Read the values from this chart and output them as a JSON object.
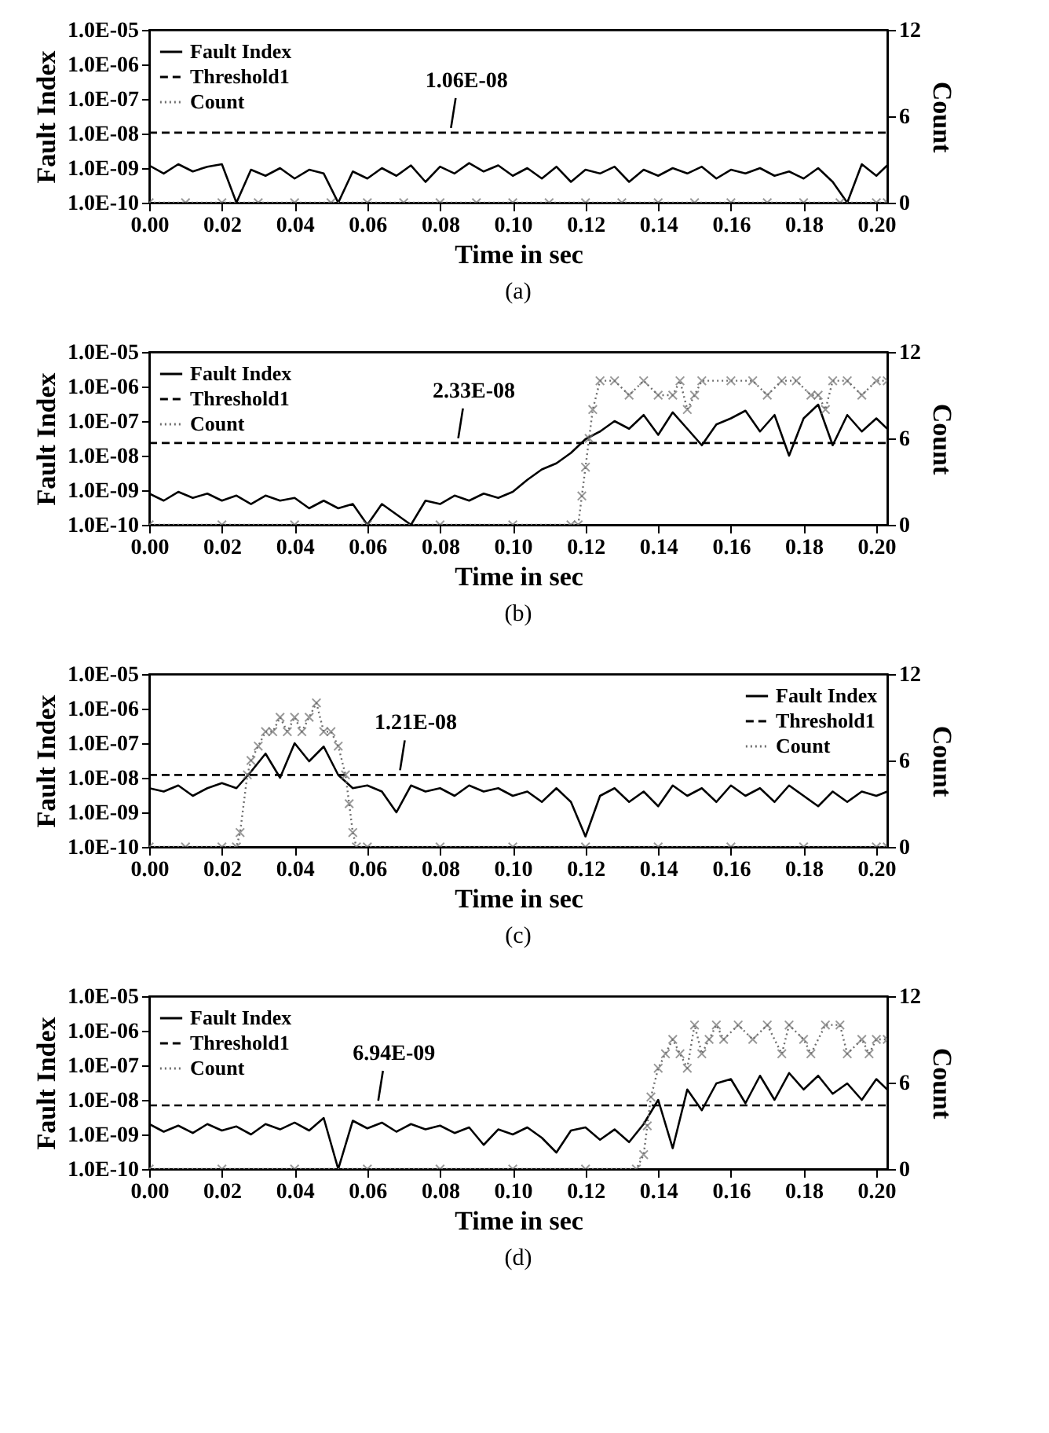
{
  "chart_data": [
    {
      "type": "line",
      "xlabel": "Time in sec",
      "ylabel": "Fault Index",
      "y2label": "Count",
      "log": "y",
      "legend": "top left",
      "xlim": [
        0,
        0.203
      ],
      "xticks": [
        {
          "value": 0,
          "label": "0.00"
        },
        {
          "value": 0.02,
          "label": "0.02"
        },
        {
          "value": 0.04,
          "label": "0.04"
        },
        {
          "value": 0.06,
          "label": "0.06"
        },
        {
          "value": 0.08,
          "label": "0.08"
        },
        {
          "value": 0.1,
          "label": "0.10"
        },
        {
          "value": 0.12,
          "label": "0.12"
        },
        {
          "value": 0.14,
          "label": "0.14"
        },
        {
          "value": 0.16,
          "label": "0.16"
        },
        {
          "value": 0.18,
          "label": "0.18"
        },
        {
          "value": 0.2,
          "label": "0.20"
        }
      ],
      "ylim": [
        1e-10,
        1e-05
      ],
      "yticks": [
        {
          "value": 1e-10,
          "label": "1.0E-10"
        },
        {
          "value": 1e-09,
          "label": "1.0E-09"
        },
        {
          "value": 1e-08,
          "label": "1.0E-08"
        },
        {
          "value": 1e-07,
          "label": "1.0E-07"
        },
        {
          "value": 1e-06,
          "label": "1.0E-06"
        },
        {
          "value": 1e-05,
          "label": "1.0E-05"
        }
      ],
      "y2lim": [
        0,
        12
      ],
      "y2ticks": [
        0,
        6,
        12
      ],
      "x": [
        0,
        0.004,
        0.008,
        0.012,
        0.016,
        0.02,
        0.024,
        0.028,
        0.032,
        0.036,
        0.04,
        0.044,
        0.048,
        0.052,
        0.056,
        0.06,
        0.064,
        0.068,
        0.072,
        0.076,
        0.08,
        0.084,
        0.088,
        0.092,
        0.096,
        0.1,
        0.104,
        0.108,
        0.112,
        0.116,
        0.12,
        0.124,
        0.128,
        0.132,
        0.136,
        0.14,
        0.144,
        0.148,
        0.152,
        0.156,
        0.16,
        0.164,
        0.168,
        0.172,
        0.176,
        0.18,
        0.184,
        0.188,
        0.192,
        0.196,
        0.2,
        0.203
      ],
      "series": [
        {
          "name": "Fault Index",
          "color": "#000000",
          "line_style": "solid",
          "values": [
            1.2e-09,
            7e-10,
            1.3e-09,
            8e-10,
            1.1e-09,
            1.3e-09,
            1e-10,
            9e-10,
            6e-10,
            1e-09,
            5e-10,
            9e-10,
            7e-10,
            1e-10,
            8e-10,
            5e-10,
            1e-09,
            6e-10,
            1.2e-09,
            4e-10,
            1.1e-09,
            7e-10,
            1.4e-09,
            8e-10,
            1.2e-09,
            6e-10,
            1e-09,
            5e-10,
            1.1e-09,
            4e-10,
            9e-10,
            7e-10,
            1.1e-09,
            4e-10,
            9e-10,
            6e-10,
            1e-09,
            7e-10,
            1.1e-09,
            5e-10,
            9e-10,
            7e-10,
            1e-09,
            6e-10,
            8e-10,
            5e-10,
            1e-09,
            4e-10,
            1e-10,
            1.3e-09,
            6e-10,
            1.2e-09
          ]
        },
        {
          "name": "Threshold1",
          "color": "#000000",
          "line_style": "dashed",
          "x": [
            0,
            0.203
          ],
          "values": [
            1.06e-08,
            1.06e-08
          ]
        },
        {
          "name": "Count",
          "color": "#6e6e6e",
          "line_style": "dotted",
          "marker": "cross",
          "axis": "y2",
          "x": [
            0,
            0.01,
            0.02,
            0.03,
            0.04,
            0.05,
            0.06,
            0.07,
            0.08,
            0.09,
            0.1,
            0.11,
            0.12,
            0.13,
            0.14,
            0.15,
            0.16,
            0.17,
            0.18,
            0.19,
            0.2,
            0.203
          ],
          "values": [
            0,
            0,
            0,
            0,
            0,
            0,
            0,
            0,
            0,
            0,
            0,
            0,
            0,
            0,
            0,
            0,
            0,
            0,
            0,
            0,
            0,
            0
          ]
        }
      ],
      "annotations": [
        {
          "text": "1.06E-08",
          "x": 0.083,
          "y": 1.06e-08
        },
        "(a)"
      ]
    },
    {
      "type": "line",
      "xlabel": "Time in sec",
      "ylabel": "Fault Index",
      "y2label": "Count",
      "log": "y",
      "legend": "top left",
      "xlim": [
        0,
        0.203
      ],
      "xticks": [
        {
          "value": 0,
          "label": "0.00"
        },
        {
          "value": 0.02,
          "label": "0.02"
        },
        {
          "value": 0.04,
          "label": "0.04"
        },
        {
          "value": 0.06,
          "label": "0.06"
        },
        {
          "value": 0.08,
          "label": "0.08"
        },
        {
          "value": 0.1,
          "label": "0.10"
        },
        {
          "value": 0.12,
          "label": "0.12"
        },
        {
          "value": 0.14,
          "label": "0.14"
        },
        {
          "value": 0.16,
          "label": "0.16"
        },
        {
          "value": 0.18,
          "label": "0.18"
        },
        {
          "value": 0.2,
          "label": "0.20"
        }
      ],
      "ylim": [
        1e-10,
        1e-05
      ],
      "yticks": [
        {
          "value": 1e-10,
          "label": "1.0E-10"
        },
        {
          "value": 1e-09,
          "label": "1.0E-09"
        },
        {
          "value": 1e-08,
          "label": "1.0E-08"
        },
        {
          "value": 1e-07,
          "label": "1.0E-07"
        },
        {
          "value": 1e-06,
          "label": "1.0E-06"
        },
        {
          "value": 1e-05,
          "label": "1.0E-05"
        }
      ],
      "y2lim": [
        0,
        12
      ],
      "y2ticks": [
        0,
        6,
        12
      ],
      "x": [
        0,
        0.004,
        0.008,
        0.012,
        0.016,
        0.02,
        0.024,
        0.028,
        0.032,
        0.036,
        0.04,
        0.044,
        0.048,
        0.052,
        0.056,
        0.06,
        0.064,
        0.068,
        0.072,
        0.076,
        0.08,
        0.084,
        0.088,
        0.092,
        0.096,
        0.1,
        0.104,
        0.108,
        0.112,
        0.116,
        0.12,
        0.124,
        0.128,
        0.132,
        0.136,
        0.14,
        0.144,
        0.148,
        0.152,
        0.156,
        0.16,
        0.164,
        0.168,
        0.172,
        0.176,
        0.18,
        0.184,
        0.188,
        0.192,
        0.196,
        0.2,
        0.203
      ],
      "series": [
        {
          "name": "Fault Index",
          "color": "#000000",
          "line_style": "solid",
          "values": [
            8e-10,
            5e-10,
            9e-10,
            6e-10,
            8e-10,
            5e-10,
            7e-10,
            4e-10,
            7e-10,
            5e-10,
            6e-10,
            3e-10,
            5e-10,
            3e-10,
            4e-10,
            1e-10,
            4e-10,
            2e-10,
            1e-10,
            5e-10,
            4e-10,
            7e-10,
            5e-10,
            8e-10,
            6e-10,
            9e-10,
            2e-09,
            4e-09,
            6e-09,
            1.2e-08,
            3e-08,
            5e-08,
            1e-07,
            6e-08,
            1.5e-07,
            4e-08,
            1.8e-07,
            6e-08,
            2e-08,
            8e-08,
            1.2e-07,
            2e-07,
            5e-08,
            1.5e-07,
            1e-08,
            1.2e-07,
            3e-07,
            2e-08,
            1.5e-07,
            5e-08,
            1.2e-07,
            6e-08
          ]
        },
        {
          "name": "Threshold1",
          "color": "#000000",
          "line_style": "dashed",
          "x": [
            0,
            0.203
          ],
          "values": [
            2.33e-08,
            2.33e-08
          ]
        },
        {
          "name": "Count",
          "color": "#6e6e6e",
          "line_style": "dotted",
          "marker": "cross",
          "axis": "y2",
          "x": [
            0,
            0.02,
            0.04,
            0.06,
            0.08,
            0.1,
            0.116,
            0.118,
            0.119,
            0.12,
            0.121,
            0.122,
            0.124,
            0.128,
            0.132,
            0.136,
            0.14,
            0.144,
            0.146,
            0.148,
            0.15,
            0.152,
            0.16,
            0.166,
            0.17,
            0.174,
            0.178,
            0.182,
            0.184,
            0.186,
            0.188,
            0.192,
            0.196,
            0.2,
            0.203
          ],
          "values": [
            0,
            0,
            0,
            0,
            0,
            0,
            0,
            0,
            2,
            4,
            6,
            8,
            10,
            10,
            9,
            10,
            9,
            9,
            10,
            8,
            9,
            10,
            10,
            10,
            9,
            10,
            10,
            9,
            9,
            8,
            10,
            10,
            9,
            10,
            10
          ]
        }
      ],
      "annotations": [
        {
          "text": "2.33E-08",
          "x": 0.085,
          "y": 2.33e-08
        },
        "(b)"
      ]
    },
    {
      "type": "line",
      "xlabel": "Time in sec",
      "ylabel": "Fault Index",
      "y2label": "Count",
      "log": "y",
      "legend": "top right",
      "xlim": [
        0,
        0.203
      ],
      "xticks": [
        {
          "value": 0,
          "label": "0.00"
        },
        {
          "value": 0.02,
          "label": "0.02"
        },
        {
          "value": 0.04,
          "label": "0.04"
        },
        {
          "value": 0.06,
          "label": "0.06"
        },
        {
          "value": 0.08,
          "label": "0.08"
        },
        {
          "value": 0.1,
          "label": "0.10"
        },
        {
          "value": 0.12,
          "label": "0.12"
        },
        {
          "value": 0.14,
          "label": "0.14"
        },
        {
          "value": 0.16,
          "label": "0.16"
        },
        {
          "value": 0.18,
          "label": "0.18"
        },
        {
          "value": 0.2,
          "label": "0.20"
        }
      ],
      "ylim": [
        1e-10,
        1e-05
      ],
      "yticks": [
        {
          "value": 1e-10,
          "label": "1.0E-10"
        },
        {
          "value": 1e-09,
          "label": "1.0E-09"
        },
        {
          "value": 1e-08,
          "label": "1.0E-08"
        },
        {
          "value": 1e-07,
          "label": "1.0E-07"
        },
        {
          "value": 1e-06,
          "label": "1.0E-06"
        },
        {
          "value": 1e-05,
          "label": "1.0E-05"
        }
      ],
      "y2lim": [
        0,
        12
      ],
      "y2ticks": [
        0,
        6,
        12
      ],
      "x": [
        0,
        0.004,
        0.008,
        0.012,
        0.016,
        0.02,
        0.024,
        0.028,
        0.032,
        0.036,
        0.04,
        0.044,
        0.048,
        0.052,
        0.056,
        0.06,
        0.064,
        0.068,
        0.072,
        0.076,
        0.08,
        0.084,
        0.088,
        0.092,
        0.096,
        0.1,
        0.104,
        0.108,
        0.112,
        0.116,
        0.12,
        0.124,
        0.128,
        0.132,
        0.136,
        0.14,
        0.144,
        0.148,
        0.152,
        0.156,
        0.16,
        0.164,
        0.168,
        0.172,
        0.176,
        0.18,
        0.184,
        0.188,
        0.192,
        0.196,
        0.2,
        0.203
      ],
      "series": [
        {
          "name": "Fault Index",
          "color": "#000000",
          "line_style": "solid",
          "values": [
            5e-09,
            4e-09,
            6e-09,
            3e-09,
            5e-09,
            7e-09,
            5e-09,
            1.5e-08,
            5e-08,
            1e-08,
            1e-07,
            3e-08,
            8e-08,
            1.2e-08,
            5e-09,
            6e-09,
            4e-09,
            1e-09,
            6e-09,
            4e-09,
            5e-09,
            3e-09,
            6e-09,
            4e-09,
            5e-09,
            3e-09,
            4e-09,
            2e-09,
            5e-09,
            2e-09,
            2e-10,
            3e-09,
            5e-09,
            2e-09,
            4e-09,
            1.5e-09,
            6e-09,
            3e-09,
            5e-09,
            2e-09,
            6e-09,
            3e-09,
            5e-09,
            2e-09,
            6e-09,
            3e-09,
            1.5e-09,
            4e-09,
            2e-09,
            4e-09,
            3e-09,
            4e-09
          ]
        },
        {
          "name": "Threshold1",
          "color": "#000000",
          "line_style": "dashed",
          "x": [
            0,
            0.203
          ],
          "values": [
            1.21e-08,
            1.21e-08
          ]
        },
        {
          "name": "Count",
          "color": "#6e6e6e",
          "line_style": "dotted",
          "marker": "cross",
          "axis": "y2",
          "x": [
            0,
            0.01,
            0.02,
            0.024,
            0.025,
            0.027,
            0.028,
            0.03,
            0.032,
            0.034,
            0.036,
            0.038,
            0.04,
            0.042,
            0.044,
            0.046,
            0.048,
            0.05,
            0.052,
            0.054,
            0.055,
            0.056,
            0.057,
            0.06,
            0.08,
            0.1,
            0.12,
            0.14,
            0.16,
            0.18,
            0.2,
            0.203
          ],
          "values": [
            0,
            0,
            0,
            0,
            1,
            5,
            6,
            7,
            8,
            8,
            9,
            8,
            9,
            8,
            9,
            10,
            8,
            8,
            7,
            5,
            3,
            1,
            0,
            0,
            0,
            0,
            0,
            0,
            0,
            0,
            0,
            0
          ]
        }
      ],
      "annotations": [
        {
          "text": "1.21E-08",
          "x": 0.069,
          "y": 1.21e-08
        },
        "(c)"
      ]
    },
    {
      "type": "line",
      "xlabel": "Time in sec",
      "ylabel": "Fault Index",
      "y2label": "Count",
      "log": "y",
      "legend": "top left",
      "xlim": [
        0,
        0.203
      ],
      "xticks": [
        {
          "value": 0,
          "label": "0.00"
        },
        {
          "value": 0.02,
          "label": "0.02"
        },
        {
          "value": 0.04,
          "label": "0.04"
        },
        {
          "value": 0.06,
          "label": "0.06"
        },
        {
          "value": 0.08,
          "label": "0.08"
        },
        {
          "value": 0.1,
          "label": "0.10"
        },
        {
          "value": 0.12,
          "label": "0.12"
        },
        {
          "value": 0.14,
          "label": "0.14"
        },
        {
          "value": 0.16,
          "label": "0.16"
        },
        {
          "value": 0.18,
          "label": "0.18"
        },
        {
          "value": 0.2,
          "label": "0.20"
        }
      ],
      "ylim": [
        1e-10,
        1e-05
      ],
      "yticks": [
        {
          "value": 1e-10,
          "label": "1.0E-10"
        },
        {
          "value": 1e-09,
          "label": "1.0E-09"
        },
        {
          "value": 1e-08,
          "label": "1.0E-08"
        },
        {
          "value": 1e-07,
          "label": "1.0E-07"
        },
        {
          "value": 1e-06,
          "label": "1.0E-06"
        },
        {
          "value": 1e-05,
          "label": "1.0E-05"
        }
      ],
      "y2lim": [
        0,
        12
      ],
      "y2ticks": [
        0,
        6,
        12
      ],
      "x": [
        0,
        0.004,
        0.008,
        0.012,
        0.016,
        0.02,
        0.024,
        0.028,
        0.032,
        0.036,
        0.04,
        0.044,
        0.048,
        0.052,
        0.056,
        0.06,
        0.064,
        0.068,
        0.072,
        0.076,
        0.08,
        0.084,
        0.088,
        0.092,
        0.096,
        0.1,
        0.104,
        0.108,
        0.112,
        0.116,
        0.12,
        0.124,
        0.128,
        0.132,
        0.136,
        0.14,
        0.144,
        0.148,
        0.152,
        0.156,
        0.16,
        0.164,
        0.168,
        0.172,
        0.176,
        0.18,
        0.184,
        0.188,
        0.192,
        0.196,
        0.2,
        0.203
      ],
      "series": [
        {
          "name": "Fault Index",
          "color": "#000000",
          "line_style": "solid",
          "values": [
            2e-09,
            1.2e-09,
            1.8e-09,
            1.1e-09,
            2e-09,
            1.3e-09,
            1.7e-09,
            1e-09,
            2e-09,
            1.4e-09,
            2.2e-09,
            1.3e-09,
            3e-09,
            1e-10,
            2.5e-09,
            1.5e-09,
            2.2e-09,
            1.2e-09,
            2e-09,
            1.4e-09,
            1.8e-09,
            1.1e-09,
            1.6e-09,
            5e-10,
            1.4e-09,
            1e-09,
            1.6e-09,
            8e-10,
            3e-10,
            1.3e-09,
            1.6e-09,
            7e-10,
            1.4e-09,
            6e-10,
            2e-09,
            1e-08,
            4e-10,
            2e-08,
            5e-09,
            3e-08,
            4e-08,
            8e-09,
            5e-08,
            1e-08,
            6e-08,
            2e-08,
            5e-08,
            1.5e-08,
            3e-08,
            1e-08,
            4e-08,
            2e-08
          ]
        },
        {
          "name": "Threshold1",
          "color": "#000000",
          "line_style": "dashed",
          "x": [
            0,
            0.203
          ],
          "values": [
            6.94e-09,
            6.94e-09
          ]
        },
        {
          "name": "Count",
          "color": "#6e6e6e",
          "line_style": "dotted",
          "marker": "cross",
          "axis": "y2",
          "x": [
            0,
            0.02,
            0.04,
            0.06,
            0.08,
            0.1,
            0.12,
            0.134,
            0.136,
            0.137,
            0.138,
            0.14,
            0.142,
            0.144,
            0.146,
            0.148,
            0.15,
            0.152,
            0.154,
            0.156,
            0.158,
            0.162,
            0.166,
            0.17,
            0.174,
            0.176,
            0.18,
            0.182,
            0.186,
            0.19,
            0.192,
            0.196,
            0.198,
            0.2,
            0.203
          ],
          "values": [
            0,
            0,
            0,
            0,
            0,
            0,
            0,
            0,
            1,
            3,
            5,
            7,
            8,
            9,
            8,
            7,
            10,
            8,
            9,
            10,
            9,
            10,
            9,
            10,
            8,
            10,
            9,
            8,
            10,
            10,
            8,
            9,
            8,
            9,
            9
          ]
        }
      ],
      "annotations": [
        {
          "text": "6.94E-09",
          "x": 0.063,
          "y": 6.94e-09
        },
        "(d)"
      ]
    }
  ]
}
